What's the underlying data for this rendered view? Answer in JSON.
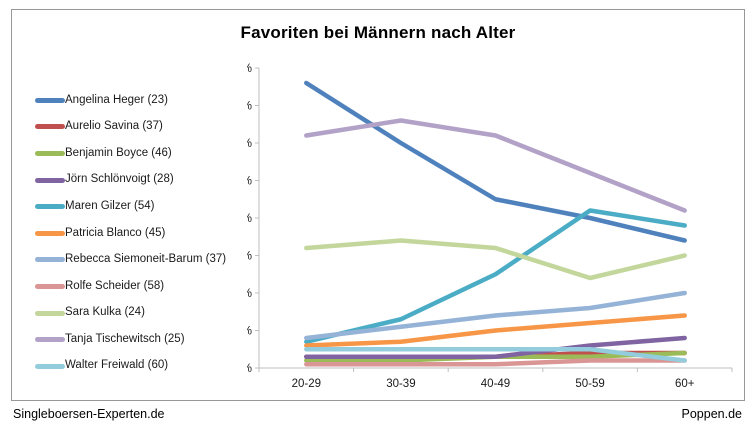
{
  "footer": {
    "left": "Singleboersen-Experten.de",
    "right": "Poppen.de"
  },
  "chart_data": {
    "type": "line",
    "title": "Favoriten bei Männern nach Alter",
    "categories": [
      "20-29",
      "30-39",
      "40-49",
      "50-59",
      "60+"
    ],
    "xlabel": "",
    "ylabel": "",
    "ylim": [
      0,
      40
    ],
    "ytick_step": 5,
    "ytick_suffix": "%",
    "grid": false,
    "legend_position": "left",
    "axis_color": "#bfbfbf",
    "text_color": "#1a1a1a",
    "series": [
      {
        "name": "Angelina Heger (23)",
        "color": "#4F81BD",
        "values": [
          38,
          30,
          22.5,
          20,
          17
        ]
      },
      {
        "name": "Aurelio Savina (37)",
        "color": "#C0504D",
        "values": [
          1.5,
          1.5,
          1.5,
          2,
          2
        ]
      },
      {
        "name": "Benjamin Boyce (46)",
        "color": "#9BBB59",
        "values": [
          1,
          1,
          1.5,
          1.5,
          2
        ]
      },
      {
        "name": "Jörn Schlönvoigt (28)",
        "color": "#8064A2",
        "values": [
          1.5,
          1.5,
          1.5,
          3,
          4
        ]
      },
      {
        "name": "Maren Gilzer (54)",
        "color": "#4BACC6",
        "values": [
          3.5,
          6.5,
          12.5,
          21,
          19
        ]
      },
      {
        "name": "Patricia Blanco (45)",
        "color": "#F79646",
        "values": [
          3,
          3.5,
          5,
          6,
          7
        ]
      },
      {
        "name": "Rebecca Siemoneit-Barum (37)",
        "color": "#95B3D7",
        "values": [
          4,
          5.5,
          7,
          8,
          10
        ]
      },
      {
        "name": "Rolfe Scheider (58)",
        "color": "#D99694",
        "values": [
          0.5,
          0.5,
          0.5,
          1,
          1
        ]
      },
      {
        "name": "Sara Kulka (24)",
        "color": "#C3D69B",
        "values": [
          16,
          17,
          16,
          12,
          15
        ]
      },
      {
        "name": "Tanja Tischewitsch (25)",
        "color": "#B3A2C7",
        "values": [
          31,
          33,
          31,
          26,
          21
        ]
      },
      {
        "name": "Walter Freiwald (60)",
        "color": "#93CDDD",
        "values": [
          2.5,
          2.5,
          2.5,
          2.5,
          1
        ]
      }
    ]
  }
}
